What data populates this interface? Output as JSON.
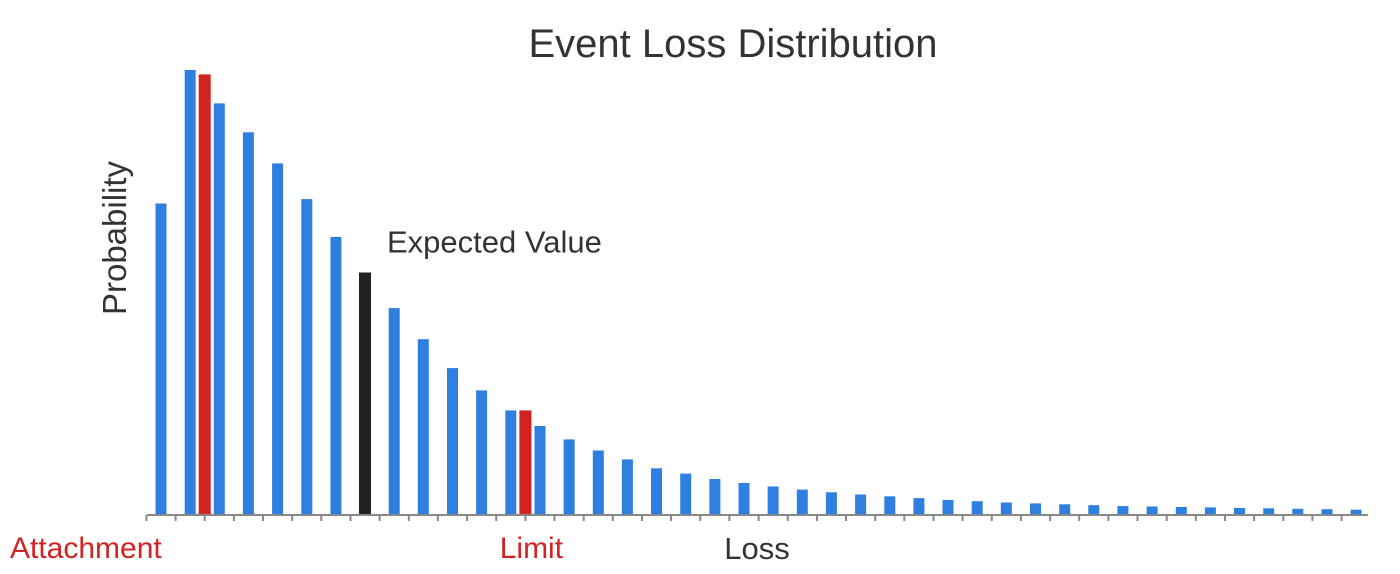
{
  "chart_data": {
    "type": "bar",
    "title": "Event Loss Distribution",
    "xlabel": "Loss",
    "ylabel": "Probability",
    "ylim": [
      0,
      1
    ],
    "grid": false,
    "legend": "none",
    "series": [
      {
        "values": [
          0.7,
          1.0,
          0.925,
          0.86,
          0.79,
          0.71,
          0.625,
          0.545,
          0.465,
          0.395,
          0.33,
          0.28,
          0.235,
          0.2,
          0.17,
          0.145,
          0.125,
          0.105,
          0.093,
          0.081,
          0.072,
          0.064,
          0.057,
          0.051,
          0.046,
          0.042,
          0.038,
          0.034,
          0.031,
          0.028,
          0.026,
          0.024,
          0.022,
          0.02,
          0.019,
          0.018,
          0.017,
          0.016,
          0.015,
          0.014,
          0.013,
          0.012
        ]
      }
    ],
    "markers": [
      {
        "kind": "attachment",
        "position": 1.5,
        "value": 0.99,
        "color": "#d32222",
        "label": "Attachment"
      },
      {
        "kind": "expected",
        "position": 7,
        "value": 0.545,
        "color": "#222222",
        "label": "Expected Value"
      },
      {
        "kind": "limit",
        "position": 12.5,
        "value": 0.235,
        "color": "#d32222",
        "label": "Limit"
      }
    ],
    "colors": {
      "bar": "#2f7fe0",
      "marker_red": "#d32222",
      "marker_black": "#222222",
      "axis": "#888888",
      "text": "#333333"
    }
  }
}
